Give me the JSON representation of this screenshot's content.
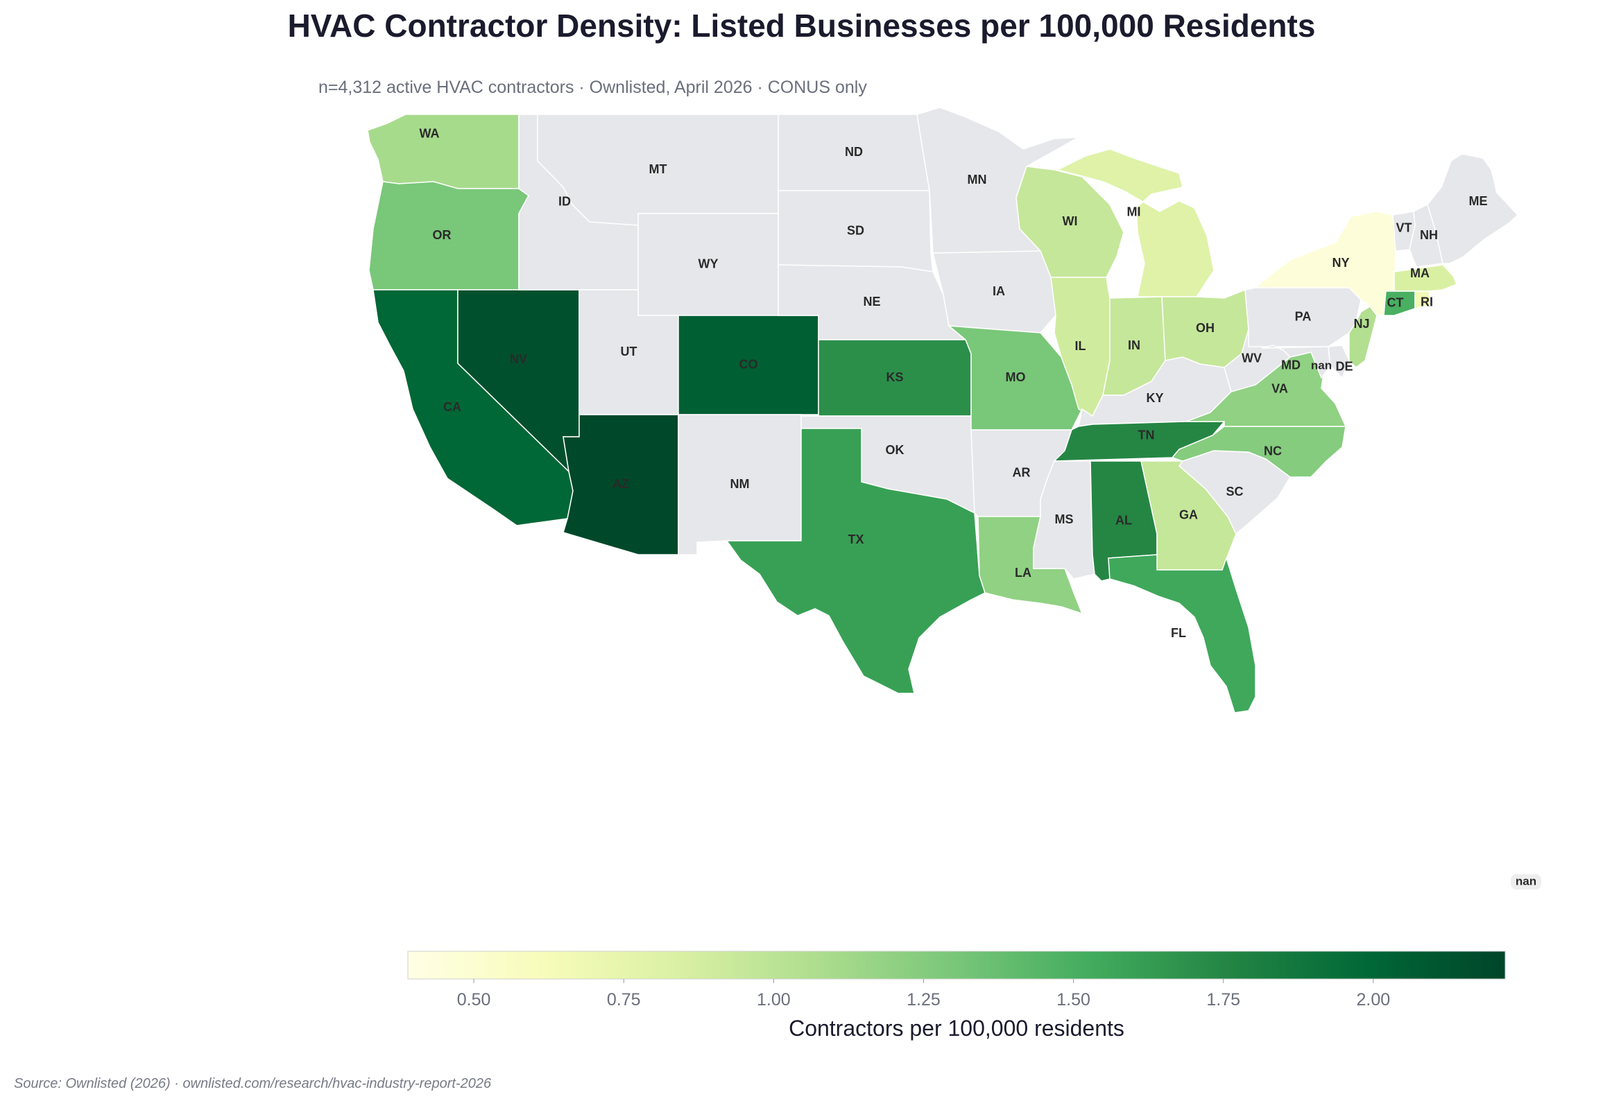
{
  "title": "HVAC Contractor Density: Listed Businesses per 100,000 Residents",
  "subtitle": "n=4,312 active HVAC contractors · Ownlisted, April 2026 · CONUS only",
  "source": "Source: Ownlisted (2026) · ownlisted.com/research/hvac-industry-report-2026",
  "colorbar": {
    "title": "Contractors per 100,000 residents",
    "min": 0.39,
    "max": 2.22,
    "ticks": [
      "0.50",
      "0.75",
      "1.00",
      "1.25",
      "1.50",
      "1.75",
      "2.00"
    ],
    "scale": "Greens",
    "colors": [
      "#ffffe5",
      "#f7fcb9",
      "#d9f0a3",
      "#addd8e",
      "#78c679",
      "#41ab5d",
      "#238443",
      "#006837",
      "#004529"
    ]
  },
  "no_data_color": "#e6e7ea",
  "states": [
    {
      "abbr": "WA",
      "value": 1.1
    },
    {
      "abbr": "OR",
      "value": 1.3
    },
    {
      "abbr": "CA",
      "value": 2.0
    },
    {
      "abbr": "NV",
      "value": 2.15
    },
    {
      "abbr": "AZ",
      "value": 2.2
    },
    {
      "abbr": "CO",
      "value": 2.05
    },
    {
      "abbr": "KS",
      "value": 1.7
    },
    {
      "abbr": "MO",
      "value": 1.3
    },
    {
      "abbr": "TX",
      "value": 1.6
    },
    {
      "abbr": "LA",
      "value": 1.2
    },
    {
      "abbr": "TN",
      "value": 1.75
    },
    {
      "abbr": "AL",
      "value": 1.75
    },
    {
      "abbr": "FL",
      "value": 1.55
    },
    {
      "abbr": "GA",
      "value": 0.95
    },
    {
      "abbr": "NC",
      "value": 1.25
    },
    {
      "abbr": "VA",
      "value": 1.2
    },
    {
      "abbr": "WI",
      "value": 0.95
    },
    {
      "abbr": "MI",
      "value": 0.8
    },
    {
      "abbr": "IL",
      "value": 0.9
    },
    {
      "abbr": "IN",
      "value": 0.95
    },
    {
      "abbr": "OH",
      "value": 0.95
    },
    {
      "abbr": "NY",
      "value": 0.45
    },
    {
      "abbr": "NJ",
      "value": 1.05
    },
    {
      "abbr": "MA",
      "value": 0.85
    },
    {
      "abbr": "CT",
      "value": 1.5
    },
    {
      "abbr": "RI",
      "value": 0.65
    },
    {
      "abbr": "MT",
      "value": null
    },
    {
      "abbr": "ID",
      "value": null
    },
    {
      "abbr": "WY",
      "value": null
    },
    {
      "abbr": "UT",
      "value": null
    },
    {
      "abbr": "NM",
      "value": null
    },
    {
      "abbr": "ND",
      "value": null
    },
    {
      "abbr": "SD",
      "value": null
    },
    {
      "abbr": "NE",
      "value": null
    },
    {
      "abbr": "OK",
      "value": null
    },
    {
      "abbr": "MN",
      "value": null
    },
    {
      "abbr": "IA",
      "value": null
    },
    {
      "abbr": "AR",
      "value": null
    },
    {
      "abbr": "MS",
      "value": null
    },
    {
      "abbr": "KY",
      "value": null
    },
    {
      "abbr": "WV",
      "value": null
    },
    {
      "abbr": "SC",
      "value": null
    },
    {
      "abbr": "PA",
      "value": null
    },
    {
      "abbr": "MD",
      "value": null
    },
    {
      "abbr": "DE",
      "value": null
    },
    {
      "abbr": "VT",
      "value": null
    },
    {
      "abbr": "NH",
      "value": null
    },
    {
      "abbr": "ME",
      "value": null
    }
  ],
  "nan_labels": [
    "nan",
    "nan"
  ]
}
